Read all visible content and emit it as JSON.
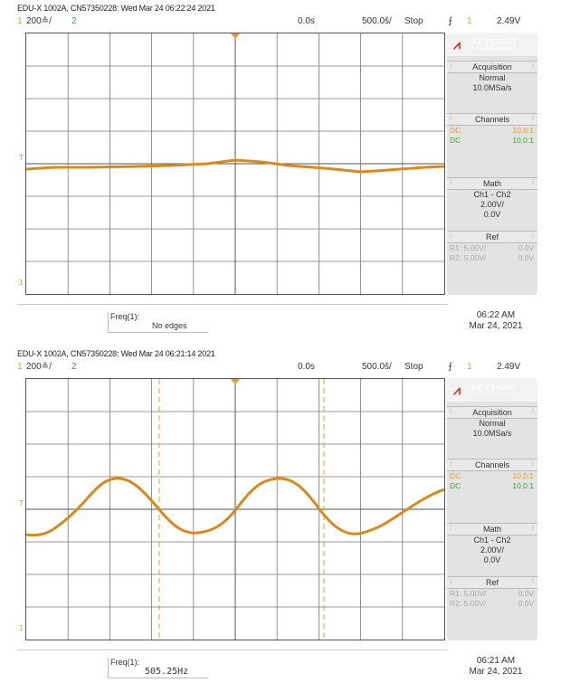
{
  "screens": [
    {
      "header": "EDU-X 1002A, CN57350228: Wed Mar 24 06:22:24 2021",
      "ch1_num": "1",
      "ch1_scale": "200≗/",
      "ch2_num": "2",
      "time_offset": "0.0s",
      "time_scale": "500.0š/",
      "run_state": "Stop",
      "trig_icon": "⨍",
      "trig_ch": "1",
      "trig_level": "2.49V",
      "freq_label": "Freq(1):",
      "freq_value": "No edges",
      "stamp_time": "06:22 AM",
      "stamp_date": "Mar 24, 2021"
    },
    {
      "header": "EDU-X 1002A, CN57350228: Wed Mar 24 06:21:14 2021",
      "ch1_num": "1",
      "ch1_scale": "200≗/",
      "ch2_num": "2",
      "time_offset": "0.0s",
      "time_scale": "500.0š/",
      "run_state": "Stop",
      "trig_icon": "⨍",
      "trig_ch": "1",
      "trig_level": "2.49V",
      "freq_label": "Freq(1):",
      "freq_value": "505.25Hz",
      "stamp_time": "06:21 AM",
      "stamp_date": "Mar 24, 2021"
    }
  ],
  "panel": {
    "brand": "KEYSIGHT",
    "brand_sub": "TECHNOLOGIES",
    "acq_title": "Acquisition",
    "acq_mode": "Normal",
    "acq_rate": "10.0MSa/s",
    "ch_title": "Channels",
    "ch1_coupling": "DC",
    "ch1_probe": "10.0:1",
    "ch2_coupling": "DC",
    "ch2_probe": "10.0:1",
    "math_title": "Math",
    "math_fn": "Ch1 - Ch2",
    "math_scale": "2.00V/",
    "math_offset": "0.0V",
    "ref_title": "Ref",
    "r1_label": "R1:",
    "r1_scale": "5.00V/",
    "r1_offset": "0.0V",
    "r2_label": "R2:",
    "r2_scale": "5.00V/",
    "r2_offset": "0.0V"
  },
  "colors": {
    "ch1": "#e8a020",
    "ch2": "#3aa832",
    "trace": "#d98a1a",
    "brand": "#d7261e"
  },
  "markers": {
    "ground": "1",
    "trigger": "T"
  }
}
